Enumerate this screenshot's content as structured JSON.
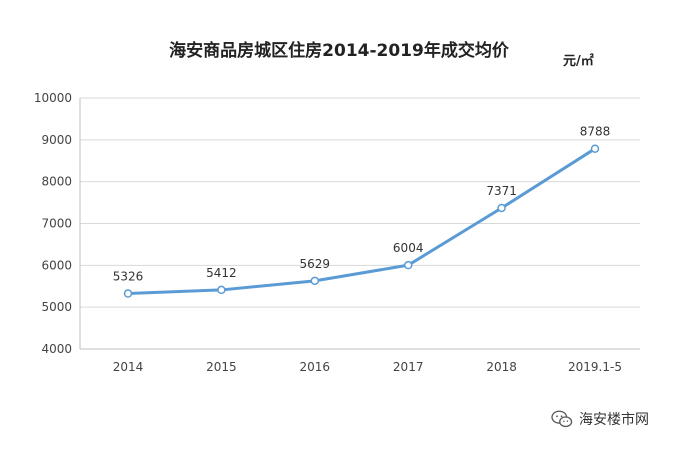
{
  "chart_data": {
    "type": "line",
    "title": "海安商品房城区住房2014-2019年成交均价",
    "unit": "元/㎡",
    "categories": [
      "2014",
      "2015",
      "2016",
      "2017",
      "2018",
      "2019.1-5"
    ],
    "values": [
      5326,
      5412,
      5629,
      6004,
      7371,
      8788
    ],
    "ylim": [
      4000,
      10000
    ],
    "yticks": [
      4000,
      5000,
      6000,
      7000,
      8000,
      9000,
      10000
    ],
    "grid": true,
    "legend": "none",
    "line_color": "#5b9bd5"
  },
  "watermark": {
    "icon": "wechat-icon",
    "text": "海安楼市网"
  }
}
